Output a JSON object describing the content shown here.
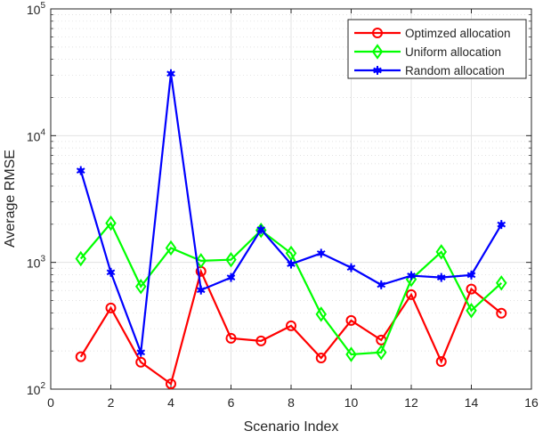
{
  "chart_data": {
    "type": "line",
    "title": "",
    "xlabel": "Scenario Index",
    "ylabel": "Average RMSE",
    "xlim": [
      0,
      16
    ],
    "ylim": [
      100,
      100000
    ],
    "yscale": "log",
    "grid": true,
    "legend_position": "top-right",
    "x_ticks": [
      "0",
      "2",
      "4",
      "6",
      "8",
      "10",
      "12",
      "14",
      "16"
    ],
    "y_ticks": [
      {
        "base": "10",
        "exp": "2"
      },
      {
        "base": "10",
        "exp": "3"
      },
      {
        "base": "10",
        "exp": "4"
      },
      {
        "base": "10",
        "exp": "5"
      }
    ],
    "x": [
      1,
      2,
      3,
      4,
      5,
      6,
      7,
      8,
      9,
      10,
      11,
      12,
      13,
      14,
      15
    ],
    "series": [
      {
        "name": "Optimzed allocation",
        "color": "#ff0000",
        "marker": "circle",
        "values": [
          180,
          437,
          163,
          110,
          850,
          252,
          240,
          316,
          176,
          348,
          244,
          557,
          165,
          616,
          397
        ]
      },
      {
        "name": "Uniform allocation",
        "color": "#00ff00",
        "marker": "diamond",
        "values": [
          1070,
          2040,
          645,
          1300,
          1030,
          1050,
          1790,
          1180,
          390,
          188,
          195,
          735,
          1210,
          417,
          688
        ]
      },
      {
        "name": "Random allocation",
        "color": "#0000ff",
        "marker": "asterisk",
        "values": [
          5300,
          835,
          195,
          30800,
          605,
          760,
          1820,
          970,
          1180,
          908,
          665,
          786,
          760,
          795,
          1990
        ]
      }
    ]
  }
}
